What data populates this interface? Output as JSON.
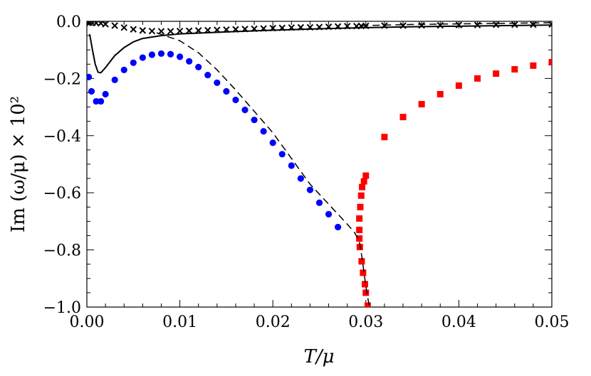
{
  "chart_data": {
    "type": "scatter",
    "title": "",
    "xlabel": "T/μ",
    "ylabel": "Im (ω/μ) × 10²",
    "xlim": [
      0,
      0.05
    ],
    "ylim": [
      -1.0,
      0.0
    ],
    "x_ticks": [
      "0.00",
      "0.01",
      "0.02",
      "0.03",
      "0.04",
      "0.05"
    ],
    "y_ticks": [
      "0.0",
      "−0.2",
      "−0.4",
      "−0.6",
      "−0.8",
      "−1.0"
    ],
    "grid": false,
    "legend": "none",
    "series": [
      {
        "marker": "circle",
        "color": "#0000ff",
        "points": [
          [
            0.0002,
            -0.195
          ],
          [
            0.0005,
            -0.245
          ],
          [
            0.001,
            -0.28
          ],
          [
            0.0015,
            -0.28
          ],
          [
            0.002,
            -0.255
          ],
          [
            0.003,
            -0.205
          ],
          [
            0.004,
            -0.17
          ],
          [
            0.005,
            -0.145
          ],
          [
            0.006,
            -0.127
          ],
          [
            0.007,
            -0.117
          ],
          [
            0.008,
            -0.113
          ],
          [
            0.009,
            -0.115
          ],
          [
            0.01,
            -0.124
          ],
          [
            0.011,
            -0.14
          ],
          [
            0.012,
            -0.16
          ],
          [
            0.013,
            -0.188
          ],
          [
            0.014,
            -0.215
          ],
          [
            0.015,
            -0.245
          ],
          [
            0.016,
            -0.275
          ],
          [
            0.017,
            -0.31
          ],
          [
            0.018,
            -0.345
          ],
          [
            0.019,
            -0.385
          ],
          [
            0.02,
            -0.425
          ],
          [
            0.021,
            -0.465
          ],
          [
            0.022,
            -0.505
          ],
          [
            0.023,
            -0.55
          ],
          [
            0.024,
            -0.59
          ],
          [
            0.025,
            -0.635
          ],
          [
            0.026,
            -0.675
          ],
          [
            0.027,
            -0.72
          ]
        ]
      },
      {
        "marker": "square",
        "color": "#ff0000",
        "points": [
          [
            0.0293,
            -0.69
          ],
          [
            0.0293,
            -0.73
          ],
          [
            0.0293,
            -0.76
          ],
          [
            0.02935,
            -0.79
          ],
          [
            0.0294,
            -0.65
          ],
          [
            0.0295,
            -0.61
          ],
          [
            0.02955,
            -0.84
          ],
          [
            0.0296,
            -0.58
          ],
          [
            0.0297,
            -0.88
          ],
          [
            0.0298,
            -0.56
          ],
          [
            0.0299,
            -0.92
          ],
          [
            0.03,
            -0.54
          ],
          [
            0.03,
            -0.95
          ],
          [
            0.0302,
            -0.995
          ],
          [
            0.032,
            -0.405
          ],
          [
            0.034,
            -0.335
          ],
          [
            0.036,
            -0.29
          ],
          [
            0.038,
            -0.255
          ],
          [
            0.04,
            -0.225
          ],
          [
            0.042,
            -0.2
          ],
          [
            0.044,
            -0.183
          ],
          [
            0.046,
            -0.168
          ],
          [
            0.048,
            -0.155
          ],
          [
            0.05,
            -0.143
          ]
        ]
      },
      {
        "marker": "cross",
        "color": "#000000",
        "points": [
          [
            0.0001,
            -0.005
          ],
          [
            0.0003,
            -0.005
          ],
          [
            0.0006,
            -0.005
          ],
          [
            0.001,
            -0.006
          ],
          [
            0.0015,
            -0.007
          ],
          [
            0.002,
            -0.01
          ],
          [
            0.003,
            -0.015
          ],
          [
            0.004,
            -0.022
          ],
          [
            0.005,
            -0.028
          ],
          [
            0.006,
            -0.032
          ],
          [
            0.007,
            -0.034
          ],
          [
            0.008,
            -0.035
          ],
          [
            0.009,
            -0.035
          ],
          [
            0.01,
            -0.034
          ],
          [
            0.011,
            -0.033
          ],
          [
            0.012,
            -0.032
          ],
          [
            0.013,
            -0.031
          ],
          [
            0.014,
            -0.03
          ],
          [
            0.015,
            -0.029
          ],
          [
            0.016,
            -0.028
          ],
          [
            0.017,
            -0.027
          ],
          [
            0.018,
            -0.026
          ],
          [
            0.019,
            -0.025
          ],
          [
            0.02,
            -0.024
          ],
          [
            0.021,
            -0.023
          ],
          [
            0.022,
            -0.022
          ],
          [
            0.023,
            -0.021
          ],
          [
            0.024,
            -0.021
          ],
          [
            0.025,
            -0.02
          ],
          [
            0.026,
            -0.019
          ],
          [
            0.027,
            -0.018
          ],
          [
            0.028,
            -0.017
          ],
          [
            0.029,
            -0.017
          ],
          [
            0.0295,
            -0.016
          ],
          [
            0.03,
            -0.016
          ],
          [
            0.032,
            -0.015
          ],
          [
            0.034,
            -0.015
          ],
          [
            0.036,
            -0.014
          ],
          [
            0.038,
            -0.014
          ],
          [
            0.04,
            -0.013
          ],
          [
            0.042,
            -0.013
          ],
          [
            0.044,
            -0.012
          ],
          [
            0.046,
            -0.012
          ],
          [
            0.048,
            -0.012
          ],
          [
            0.05,
            -0.011
          ]
        ]
      },
      {
        "marker": "solid-line",
        "color": "#000000",
        "points": [
          [
            0.0003,
            -0.045
          ],
          [
            0.0006,
            -0.1
          ],
          [
            0.0009,
            -0.15
          ],
          [
            0.0012,
            -0.178
          ],
          [
            0.0015,
            -0.18
          ],
          [
            0.002,
            -0.162
          ],
          [
            0.003,
            -0.12
          ],
          [
            0.004,
            -0.092
          ],
          [
            0.005,
            -0.072
          ],
          [
            0.006,
            -0.06
          ],
          [
            0.008,
            -0.05
          ],
          [
            0.01,
            -0.044
          ],
          [
            0.015,
            -0.037
          ],
          [
            0.02,
            -0.031
          ],
          [
            0.025,
            -0.026
          ],
          [
            0.03,
            -0.022
          ],
          [
            0.035,
            -0.019
          ],
          [
            0.04,
            -0.017
          ],
          [
            0.045,
            -0.015
          ],
          [
            0.05,
            -0.013
          ]
        ]
      },
      {
        "marker": "dashed-line",
        "color": "#000000",
        "points": [
          [
            0.0075,
            -0.04
          ],
          [
            0.01,
            -0.068
          ],
          [
            0.012,
            -0.11
          ],
          [
            0.014,
            -0.17
          ],
          [
            0.016,
            -0.24
          ],
          [
            0.018,
            -0.315
          ],
          [
            0.02,
            -0.39
          ],
          [
            0.022,
            -0.48
          ],
          [
            0.024,
            -0.57
          ],
          [
            0.026,
            -0.64
          ],
          [
            0.027,
            -0.675
          ],
          [
            0.028,
            -0.71
          ],
          [
            0.0288,
            -0.74
          ],
          [
            0.0293,
            -0.77
          ],
          [
            0.0296,
            -0.83
          ],
          [
            0.0298,
            -0.88
          ],
          [
            0.0301,
            -0.95
          ],
          [
            0.0304,
            -1.0
          ]
        ]
      },
      {
        "marker": "dashed-line",
        "color": "#000000",
        "points": [
          [
            0.0295,
            -0.015
          ],
          [
            0.035,
            -0.011
          ],
          [
            0.04,
            -0.009
          ],
          [
            0.045,
            -0.007
          ],
          [
            0.05,
            -0.005
          ]
        ]
      }
    ]
  }
}
